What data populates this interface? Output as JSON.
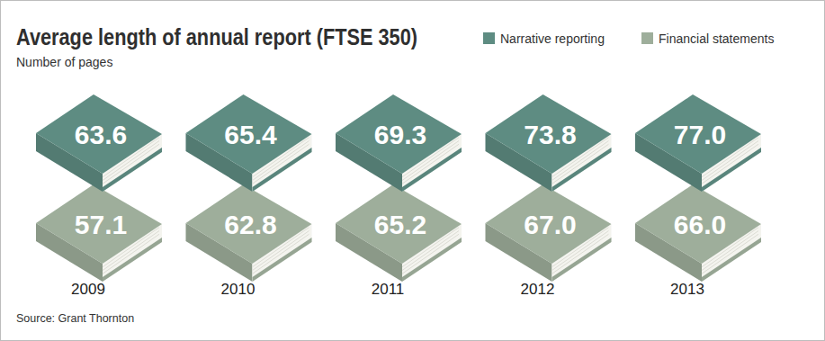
{
  "chart_data": {
    "type": "pictograph",
    "title": "Average length of annual report (FTSE 350)",
    "subtitle": "Number of pages",
    "source": "Source: Grant Thornton",
    "categories": [
      "2009",
      "2010",
      "2011",
      "2012",
      "2013"
    ],
    "series": [
      {
        "name": "Narrative reporting",
        "color": "#5e8c82",
        "values": [
          63.6,
          65.4,
          69.3,
          73.8,
          77.0
        ],
        "value_labels": [
          "63.6",
          "65.4",
          "69.3",
          "73.8",
          "77.0"
        ]
      },
      {
        "name": "Financial statements",
        "color": "#9eae9b",
        "values": [
          57.1,
          62.8,
          65.2,
          67.0,
          66.0
        ],
        "value_labels": [
          "57.1",
          "62.8",
          "65.2",
          "67.0",
          "66.0"
        ]
      }
    ],
    "data_labels": true,
    "legend": "top-right"
  }
}
